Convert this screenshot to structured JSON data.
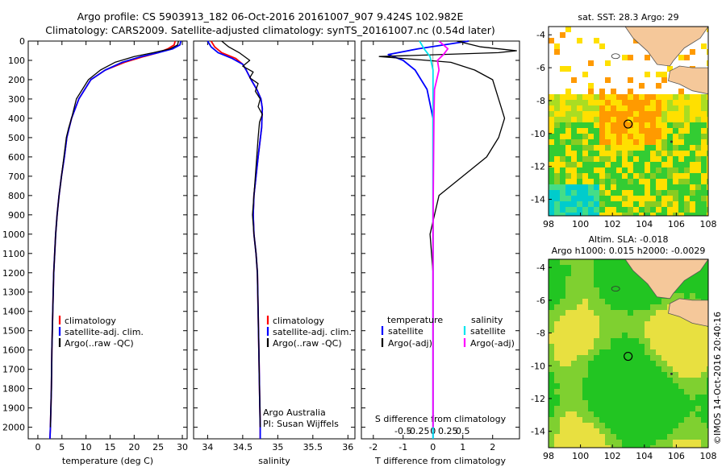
{
  "header": {
    "line1": "Argo profile: CS 5903913_182 06-Oct-2016 20161007_907 9.424S 102.982E",
    "line2": "Climatology: CARS2009. Satellite-adjusted climatology: synTS_20161007.nc (0.54d later)"
  },
  "side_label": "©IMOS 14-Oct-2016 20:40:16",
  "chart_data": [
    {
      "type": "line",
      "xlabel": "temperature (deg C)",
      "ylabel": "",
      "xlim": [
        -2,
        31
      ],
      "ylim": [
        0,
        2060
      ],
      "xticks": [
        "0",
        "5",
        "10",
        "15",
        "20",
        "25",
        "30"
      ],
      "yticks": [
        "0",
        "100",
        "200",
        "300",
        "400",
        "500",
        "600",
        "700",
        "800",
        "900",
        "1000",
        "1100",
        "1200",
        "1300",
        "1400",
        "1500",
        "1600",
        "1700",
        "1800",
        "1900",
        "2000"
      ],
      "legend": [
        "climatology",
        "satellite-adj. clim.",
        "Argo(..raw -QC)"
      ],
      "series": [
        {
          "name": "climatology",
          "color": "#ff0000",
          "x": [
            28.5,
            28.3,
            27,
            25,
            22,
            18,
            14,
            11,
            8.5,
            7,
            6.5,
            6,
            5.5,
            4.9,
            4.4,
            4,
            3.7,
            3.5,
            3.3,
            3.1,
            2.9,
            2.8,
            2.6,
            2.5
          ],
          "y": [
            0,
            20,
            40,
            60,
            80,
            110,
            150,
            200,
            300,
            400,
            450,
            500,
            600,
            700,
            800,
            900,
            1000,
            1100,
            1200,
            1400,
            1600,
            1800,
            2000,
            2060
          ]
        },
        {
          "name": "satellite-adj. clim.",
          "color": "#0000ff",
          "x": [
            29.7,
            29.5,
            28,
            25,
            21.5,
            17.5,
            14,
            11,
            8.5,
            7,
            6.5,
            6,
            5.5,
            4.9,
            4.4,
            4,
            3.7,
            3.5,
            3.3,
            3.1,
            2.9,
            2.8,
            2.6,
            2.5
          ],
          "y": [
            0,
            20,
            40,
            60,
            80,
            110,
            150,
            200,
            300,
            400,
            450,
            500,
            600,
            700,
            800,
            900,
            1000,
            1100,
            1200,
            1400,
            1600,
            1800,
            2000,
            2060
          ]
        },
        {
          "name": "Argo(..raw -QC)",
          "color": "#000000",
          "x": [
            29.2,
            29,
            27.5,
            24,
            20,
            16,
            13,
            10.5,
            8,
            7,
            6.4,
            5.9,
            5.4,
            4.9,
            4.4,
            4,
            3.7,
            3.5,
            3.3,
            3.1,
            2.9,
            2.8,
            2.6
          ],
          "y": [
            0,
            20,
            40,
            60,
            80,
            110,
            150,
            200,
            300,
            400,
            450,
            500,
            600,
            700,
            800,
            900,
            1000,
            1100,
            1200,
            1400,
            1600,
            1800,
            2000
          ]
        }
      ]
    },
    {
      "type": "line",
      "xlabel": "salinity",
      "xlim": [
        33.8,
        36.1
      ],
      "ylim": [
        0,
        2060
      ],
      "xticks": [
        "34",
        "34.5",
        "35",
        "35.5",
        "36"
      ],
      "legend": [
        "climatology",
        "satellite-adj. clim.",
        "Argo(..raw -QC)"
      ],
      "annotation": [
        "Argo Australia",
        "PI: Susan Wijffels"
      ],
      "series": [
        {
          "name": "climatology",
          "color": "#ff0000",
          "x": [
            34.05,
            34.1,
            34.2,
            34.4,
            34.5,
            34.55,
            34.62,
            34.7,
            34.76,
            34.78,
            34.77,
            34.72,
            34.66,
            34.65,
            34.66,
            34.69,
            34.71,
            34.72,
            34.73,
            34.74,
            34.75,
            34.75
          ],
          "y": [
            0,
            30,
            60,
            90,
            120,
            150,
            200,
            250,
            300,
            350,
            450,
            600,
            800,
            900,
            1000,
            1100,
            1200,
            1400,
            1600,
            1800,
            2000,
            2060
          ]
        },
        {
          "name": "satellite-adj. clim.",
          "color": "#0000ff",
          "x": [
            34.0,
            34.05,
            34.15,
            34.35,
            34.5,
            34.55,
            34.62,
            34.7,
            34.76,
            34.78,
            34.77,
            34.72,
            34.66,
            34.65,
            34.66,
            34.69,
            34.71,
            34.72,
            34.73,
            34.74,
            34.75,
            34.75
          ],
          "y": [
            0,
            30,
            60,
            90,
            120,
            150,
            200,
            250,
            300,
            350,
            450,
            600,
            800,
            900,
            1000,
            1100,
            1200,
            1400,
            1600,
            1800,
            2000,
            2060
          ]
        },
        {
          "name": "Argo(..raw -QC)",
          "color": "#000000",
          "x": [
            34.2,
            34.3,
            34.45,
            34.6,
            34.5,
            34.65,
            34.6,
            34.72,
            34.68,
            34.75,
            34.72,
            34.78,
            34.74,
            34.72,
            34.7,
            34.66,
            34.64,
            34.66,
            34.69,
            34.71,
            34.72,
            34.73,
            34.74,
            34.75
          ],
          "y": [
            0,
            30,
            60,
            100,
            130,
            160,
            190,
            220,
            260,
            300,
            340,
            380,
            420,
            500,
            600,
            800,
            900,
            1000,
            1100,
            1200,
            1400,
            1600,
            1800,
            2000
          ]
        }
      ]
    },
    {
      "type": "line",
      "xlabel": "T difference from climatology",
      "top_label": "S difference from climatology",
      "xlim": [
        -2.4,
        2.9
      ],
      "ylim": [
        0,
        2060
      ],
      "xticks": [
        "-2",
        "-1",
        "0",
        "1",
        "2"
      ],
      "top_ticks": [
        "-0.5",
        "-0.25",
        "0",
        "0.25",
        "0.5"
      ],
      "legend_left_title": "temperature",
      "legend_right_title": "salinity",
      "legend_left": [
        "satellite",
        "Argo(-adj)"
      ],
      "legend_right": [
        "satellite",
        "Argo(-adj)"
      ],
      "series": [
        {
          "name": "T satellite",
          "color": "#0000ff",
          "x": [
            1.2,
            -0.5,
            -1.5,
            -1.0,
            -0.6,
            -0.2,
            0,
            0,
            0,
            0,
            0,
            0,
            0,
            0,
            0,
            0
          ],
          "y": [
            0,
            40,
            70,
            100,
            150,
            250,
            400,
            600,
            800,
            1000,
            1200,
            1400,
            1600,
            1800,
            2000,
            2060
          ]
        },
        {
          "name": "T Argo(-adj)",
          "color": "#000000",
          "x": [
            0.8,
            1.6,
            2.8,
            2.2,
            -1.8,
            0.6,
            1.4,
            2.0,
            2.2,
            2.4,
            2.2,
            1.8,
            1.0,
            0.2,
            -0.1,
            0,
            0,
            0,
            0,
            0
          ],
          "y": [
            0,
            30,
            50,
            60,
            80,
            110,
            150,
            200,
            300,
            400,
            500,
            600,
            700,
            800,
            1000,
            1200,
            1400,
            1600,
            1800,
            2000
          ]
        },
        {
          "name": "S satellite",
          "color": "#00e5ee",
          "x": [
            -0.45,
            -0.3,
            -0.1,
            0,
            0,
            0,
            0,
            0,
            0,
            0,
            0,
            0,
            0
          ],
          "y": [
            0,
            40,
            80,
            150,
            300,
            500,
            800,
            1000,
            1200,
            1400,
            1600,
            1800,
            2060
          ]
        },
        {
          "name": "S Argo(-adj)",
          "color": "#ff00ff",
          "x": [
            0.2,
            0.5,
            0.35,
            0.15,
            0.2,
            0.05,
            0.03,
            0.02,
            0.01,
            0,
            0,
            0,
            0
          ],
          "y": [
            0,
            40,
            70,
            100,
            150,
            250,
            400,
            600,
            800,
            1000,
            1400,
            1800,
            2000
          ]
        }
      ]
    },
    {
      "type": "heatmap",
      "title": "sat. SST: 28.3 Argo: 29",
      "xlim": [
        98,
        108
      ],
      "ylim": [
        -15,
        -3.5
      ],
      "xticks": [
        "98",
        "100",
        "102",
        "104",
        "106",
        "108"
      ],
      "yticks": [
        "-4",
        "-6",
        "-8",
        "-10",
        "-12",
        "-14"
      ],
      "marker": {
        "lon": 102.982,
        "lat": -9.424
      }
    },
    {
      "type": "heatmap",
      "title": "Altim. SLA: -0.018",
      "subtitle": "Argo h1000: 0.015 h2000: -0.0029",
      "xlim": [
        98,
        108
      ],
      "ylim": [
        -15,
        -3.5
      ],
      "xticks": [
        "98",
        "100",
        "102",
        "104",
        "106",
        "108"
      ],
      "yticks": [
        "-4",
        "-6",
        "-8",
        "-10",
        "-12",
        "-14"
      ],
      "marker": {
        "lon": 102.982,
        "lat": -9.424
      }
    }
  ],
  "colors": {
    "land": "#f5c89a",
    "land_edge": "#555555",
    "sst_high": "#ff9a00",
    "sst_mid": "#ffe000",
    "sst_low": "#33cc33",
    "sst_cold": "#00cccc",
    "sla_green": "#22c522",
    "sla_yellow": "#e8e040"
  }
}
